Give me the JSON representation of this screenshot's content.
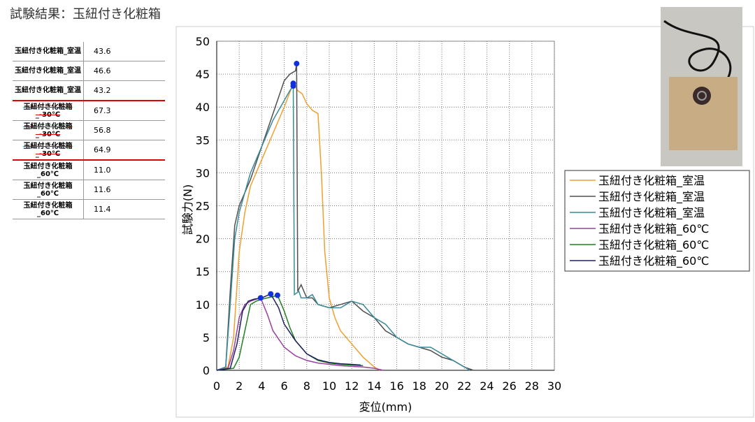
{
  "header": {
    "title": "試験結果：玉紐付き化粧箱"
  },
  "table": {
    "rows": [
      [
        "玉紐付き化粧箱_室温",
        "43.6"
      ],
      [
        "玉紐付き化粧箱_室温",
        "46.6"
      ],
      [
        "玉紐付き化粧箱_室温",
        "43.2"
      ],
      [
        "玉紐付き化粧箱_-30℃",
        "67.3"
      ],
      [
        "玉紐付き化粧箱_-30℃",
        "56.8"
      ],
      [
        "玉紐付き化粧箱_-30℃",
        "64.9"
      ],
      [
        "玉紐付き化粧箱_60℃",
        "11.0"
      ],
      [
        "玉紐付き化粧箱_60℃",
        "11.6"
      ],
      [
        "玉紐付き化粧箱_60℃",
        "11.4"
      ]
    ]
  },
  "chart_data": {
    "type": "line",
    "x_label": "変位(mm)",
    "y_label": "試験力(N)",
    "xlim": [
      0,
      30
    ],
    "xticks": [
      0,
      2,
      4,
      6,
      8,
      10,
      12,
      14,
      16,
      18,
      20,
      22,
      24,
      26,
      28,
      30
    ],
    "ylim": [
      0,
      50
    ],
    "yticks": [
      0,
      5,
      10,
      15,
      20,
      25,
      30,
      35,
      40,
      45,
      50
    ],
    "grid": true,
    "series": [
      {
        "name": "玉紐付き化粧箱_室温",
        "color": "#f0a030",
        "x": [
          0,
          1,
          1.5,
          2,
          2.5,
          3,
          4,
          5,
          6,
          6.8,
          7.2,
          7.6,
          8,
          8.5,
          9,
          9.3,
          9.6,
          10,
          10.5,
          11,
          12,
          13,
          14,
          14.5
        ],
        "values": [
          0,
          0.5,
          5,
          18,
          24,
          28,
          32,
          36,
          40,
          43.6,
          42.5,
          42,
          40.5,
          39.5,
          39,
          30,
          18,
          11,
          8,
          6,
          4,
          2,
          0.5,
          0
        ]
      },
      {
        "name": "玉紐付き化粧箱_室温",
        "color": "#505050",
        "x": [
          0,
          0.8,
          1.2,
          1.6,
          2,
          2.5,
          3,
          4,
          5,
          6,
          6.5,
          7,
          7.1,
          7.2,
          7.5,
          8,
          8.5,
          9,
          10,
          11,
          12,
          13,
          14,
          15,
          16,
          17,
          18,
          19,
          20,
          21,
          22,
          22.8
        ],
        "values": [
          0,
          0.5,
          12,
          22,
          25,
          27,
          29,
          34,
          39,
          44,
          45,
          45.5,
          46.6,
          12,
          13,
          11,
          11,
          10,
          9.5,
          10,
          10.5,
          9,
          8,
          6,
          5,
          4,
          3.5,
          3,
          2,
          1.5,
          0.5,
          0
        ]
      },
      {
        "name": "玉紐付き化粧箱_室温",
        "color": "#3a8a9a",
        "x": [
          0,
          0.8,
          1.2,
          1.6,
          2,
          2.5,
          3,
          4,
          5,
          6,
          6.5,
          6.8,
          6.9,
          7.3,
          7.5,
          8,
          8.5,
          9,
          10,
          11,
          12,
          13,
          14,
          15,
          16,
          17,
          18,
          19,
          20,
          21,
          22,
          22.5
        ],
        "values": [
          0,
          0.5,
          10,
          20,
          24,
          27,
          30,
          34,
          38,
          41,
          42.5,
          43.2,
          11.5,
          12,
          11,
          11,
          11.5,
          10,
          9.5,
          9.5,
          10.5,
          10,
          8,
          7,
          5,
          4,
          3.5,
          3.5,
          2.5,
          1.5,
          0.5,
          0
        ]
      },
      {
        "name": "玉紐付き化粧箱_60℃",
        "color": "#9a40a0",
        "x": [
          0,
          1,
          1.5,
          2,
          2.5,
          3,
          3.5,
          3.9,
          4.5,
          5,
          6,
          7,
          8,
          9,
          10,
          11,
          12,
          13,
          14,
          14.8
        ],
        "values": [
          0,
          0.3,
          3,
          8,
          10,
          10.5,
          10.8,
          11,
          8.5,
          6,
          3.5,
          2.2,
          1.5,
          1.1,
          0.9,
          0.7,
          0.6,
          0.5,
          0.3,
          0
        ]
      },
      {
        "name": "玉紐付き化粧箱_60℃",
        "color": "#208020",
        "x": [
          0,
          1.5,
          2,
          2.5,
          3,
          3.5,
          4,
          4.5,
          5,
          5.4,
          6,
          6.5,
          7,
          8,
          9,
          10,
          11,
          12,
          13
        ],
        "values": [
          0,
          0.3,
          2,
          6,
          10,
          10.5,
          10.8,
          11,
          11.2,
          11.4,
          9,
          6.5,
          4.5,
          2.5,
          1.5,
          1.1,
          0.9,
          0.8,
          0.7
        ]
      },
      {
        "name": "玉紐付き化粧箱_60℃",
        "color": "#202060",
        "x": [
          0,
          1.2,
          1.8,
          2.3,
          2.8,
          3.3,
          4,
          4.8,
          5.5,
          6,
          7,
          8,
          9,
          10,
          11,
          12,
          12.8
        ],
        "values": [
          0,
          0.3,
          4,
          9,
          10.5,
          10.8,
          11,
          11.6,
          9.5,
          7,
          4.5,
          2.5,
          1.6,
          1.2,
          1,
          0.9,
          0.8
        ]
      }
    ]
  }
}
